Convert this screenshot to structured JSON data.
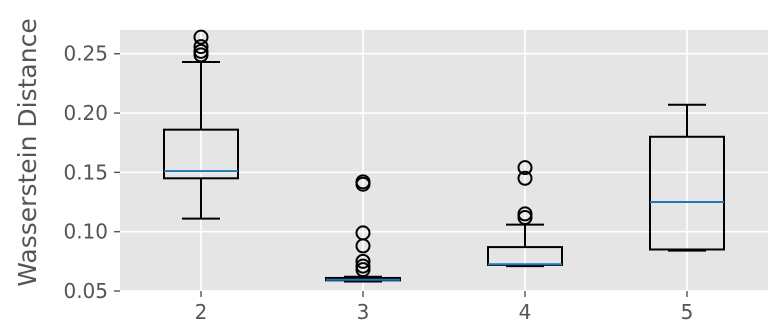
{
  "chart_data": {
    "type": "box",
    "title": "",
    "xlabel": "",
    "ylabel": "Wasserstein Distance",
    "categories": [
      "2",
      "3",
      "4",
      "5"
    ],
    "ylim": [
      0.05,
      0.27
    ],
    "yticks": [
      0.05,
      0.1,
      0.15,
      0.2,
      0.25
    ],
    "ytick_labels": [
      "0.05",
      "0.10",
      "0.15",
      "0.20",
      "0.25"
    ],
    "grid": true,
    "boxes": [
      {
        "category": "2",
        "whisker_low": 0.111,
        "q1": 0.145,
        "median": 0.151,
        "q3": 0.186,
        "whisker_high": 0.243,
        "outliers": [
          0.249,
          0.252,
          0.256,
          0.264
        ]
      },
      {
        "category": "3",
        "whisker_low": 0.058,
        "q1": 0.059,
        "median": 0.0595,
        "q3": 0.061,
        "whisker_high": 0.062,
        "outliers": [
          0.068,
          0.071,
          0.075,
          0.088,
          0.099,
          0.14,
          0.142
        ]
      },
      {
        "category": "4",
        "whisker_low": 0.071,
        "q1": 0.072,
        "median": 0.0725,
        "q3": 0.087,
        "whisker_high": 0.106,
        "outliers": [
          0.112,
          0.115,
          0.145,
          0.154
        ]
      },
      {
        "category": "5",
        "whisker_low": 0.084,
        "q1": 0.085,
        "median": 0.125,
        "q3": 0.18,
        "whisker_high": 0.207,
        "outliers": []
      }
    ],
    "colors": {
      "background": "#e5e5e5",
      "grid": "#ffffff",
      "box": "#000000",
      "median": "#1f77b4"
    }
  }
}
